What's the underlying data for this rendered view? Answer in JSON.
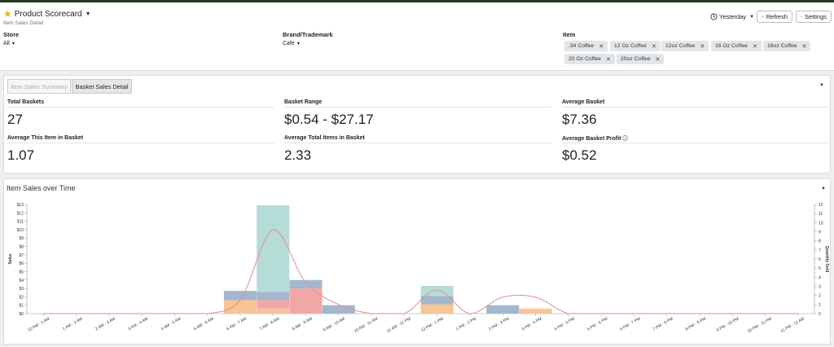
{
  "header": {
    "title": "Product Scorecard",
    "subtitle": "Item Sales Detail",
    "date_filter": "Yesterday",
    "refresh_label": "Refresh",
    "settings_label": "Settings"
  },
  "filters": {
    "store": {
      "label": "Store",
      "value": "All"
    },
    "brand": {
      "label": "Brand/Trademark",
      "value": "Cafe"
    },
    "item": {
      "label": "Item",
      "chips": [
        ".34 Coffee",
        "12 Oz Coffee",
        "12oz Coffee",
        "16 Oz Coffee",
        "16oz Coffee",
        "20 Oz Coffee",
        "20oz Coffee"
      ]
    }
  },
  "tabs": {
    "summary": "Item Sales Summary",
    "basket": "Basket Sales Detail"
  },
  "metrics": [
    {
      "label": "Total Baskets",
      "value": "27"
    },
    {
      "label": "Basket Range",
      "value": "$0.54 - $27.17"
    },
    {
      "label": "Average Basket",
      "value": "$7.36"
    },
    {
      "label": "Average This Item in Basket",
      "value": "1.07"
    },
    {
      "label": "Average Total Items in Basket",
      "value": "2.33"
    },
    {
      "label": "Average Basket Profit",
      "value": "$0.52"
    }
  ],
  "chart_title": "Item Sales over Time",
  "colors": {
    "topbar": "#233823",
    "star": "#f0b400",
    "orange": "#f7c595",
    "pink": "#f2a7a7",
    "blue": "#a3b7cf",
    "teal": "#b6dcd8",
    "curve": "#e28e8e"
  },
  "chart_data": {
    "type": "bar",
    "title": "Item Sales over Time",
    "ylabel": "Sales",
    "y2label": "Quantity Sold",
    "ylim": [
      0,
      13
    ],
    "y2lim": [
      0,
      12
    ],
    "yticks": [
      "$0",
      "$1",
      "$2",
      "$3",
      "$4",
      "$5",
      "$6",
      "$7",
      "$8",
      "$9",
      "$10",
      "$11",
      "$12",
      "$13"
    ],
    "y2ticks": [
      "0",
      "1",
      "2",
      "3",
      "4",
      "5",
      "6",
      "7",
      "8",
      "9",
      "10",
      "11",
      "12"
    ],
    "categories": [
      "12 AM - 1 AM",
      "1 AM - 2 AM",
      "2 AM - 3 AM",
      "3 AM - 4 AM",
      "4 AM - 5 AM",
      "5 AM - 6 AM",
      "6 AM - 7 AM",
      "7 AM - 8 AM",
      "8 AM - 9 AM",
      "9 AM - 10 AM",
      "10 AM - 11 AM",
      "11 AM - 12 PM",
      "12 PM - 1 PM",
      "1 PM - 2 PM",
      "2 PM - 3 PM",
      "3 PM - 4 PM",
      "4 PM - 5 PM",
      "5 PM - 6 PM",
      "6 PM - 7 PM",
      "7 PM - 8 PM",
      "8 PM - 9 PM",
      "9 PM - 10 PM",
      "10 PM - 11 PM",
      "11 PM - 12 AM"
    ],
    "series": [
      {
        "color": "#f7c595",
        "values": [
          0,
          0,
          0,
          0,
          0,
          0,
          1.6,
          0.6,
          0,
          0,
          0,
          0,
          1.1,
          0,
          0,
          0.6,
          0,
          0,
          0,
          0,
          0,
          0,
          0,
          0
        ]
      },
      {
        "color": "#f2a7a7",
        "values": [
          0,
          0,
          0,
          0,
          0,
          0,
          0,
          1.0,
          3.0,
          0,
          0,
          0,
          0,
          0,
          0,
          0,
          0,
          0,
          0,
          0,
          0,
          0,
          0,
          0
        ]
      },
      {
        "color": "#a3b7cf",
        "values": [
          0,
          0,
          0,
          0,
          0,
          0,
          1.1,
          1.0,
          1.0,
          1.0,
          0,
          0,
          1.0,
          0,
          1.0,
          0,
          0,
          0,
          0,
          0,
          0,
          0,
          0,
          0
        ]
      },
      {
        "color": "#b6dcd8",
        "values": [
          0,
          0,
          0,
          0,
          0,
          0,
          0,
          10.3,
          0,
          0,
          0,
          0,
          1.2,
          0,
          0,
          0,
          0,
          0,
          0,
          0,
          0,
          0,
          0,
          0
        ]
      }
    ],
    "line": {
      "values": [
        0,
        0,
        0,
        0,
        0,
        0,
        1.5,
        9.2,
        3.4,
        1.0,
        0,
        0,
        2.6,
        0,
        1.8,
        1.8,
        0,
        0,
        0,
        0,
        0,
        0,
        0,
        0
      ]
    }
  }
}
